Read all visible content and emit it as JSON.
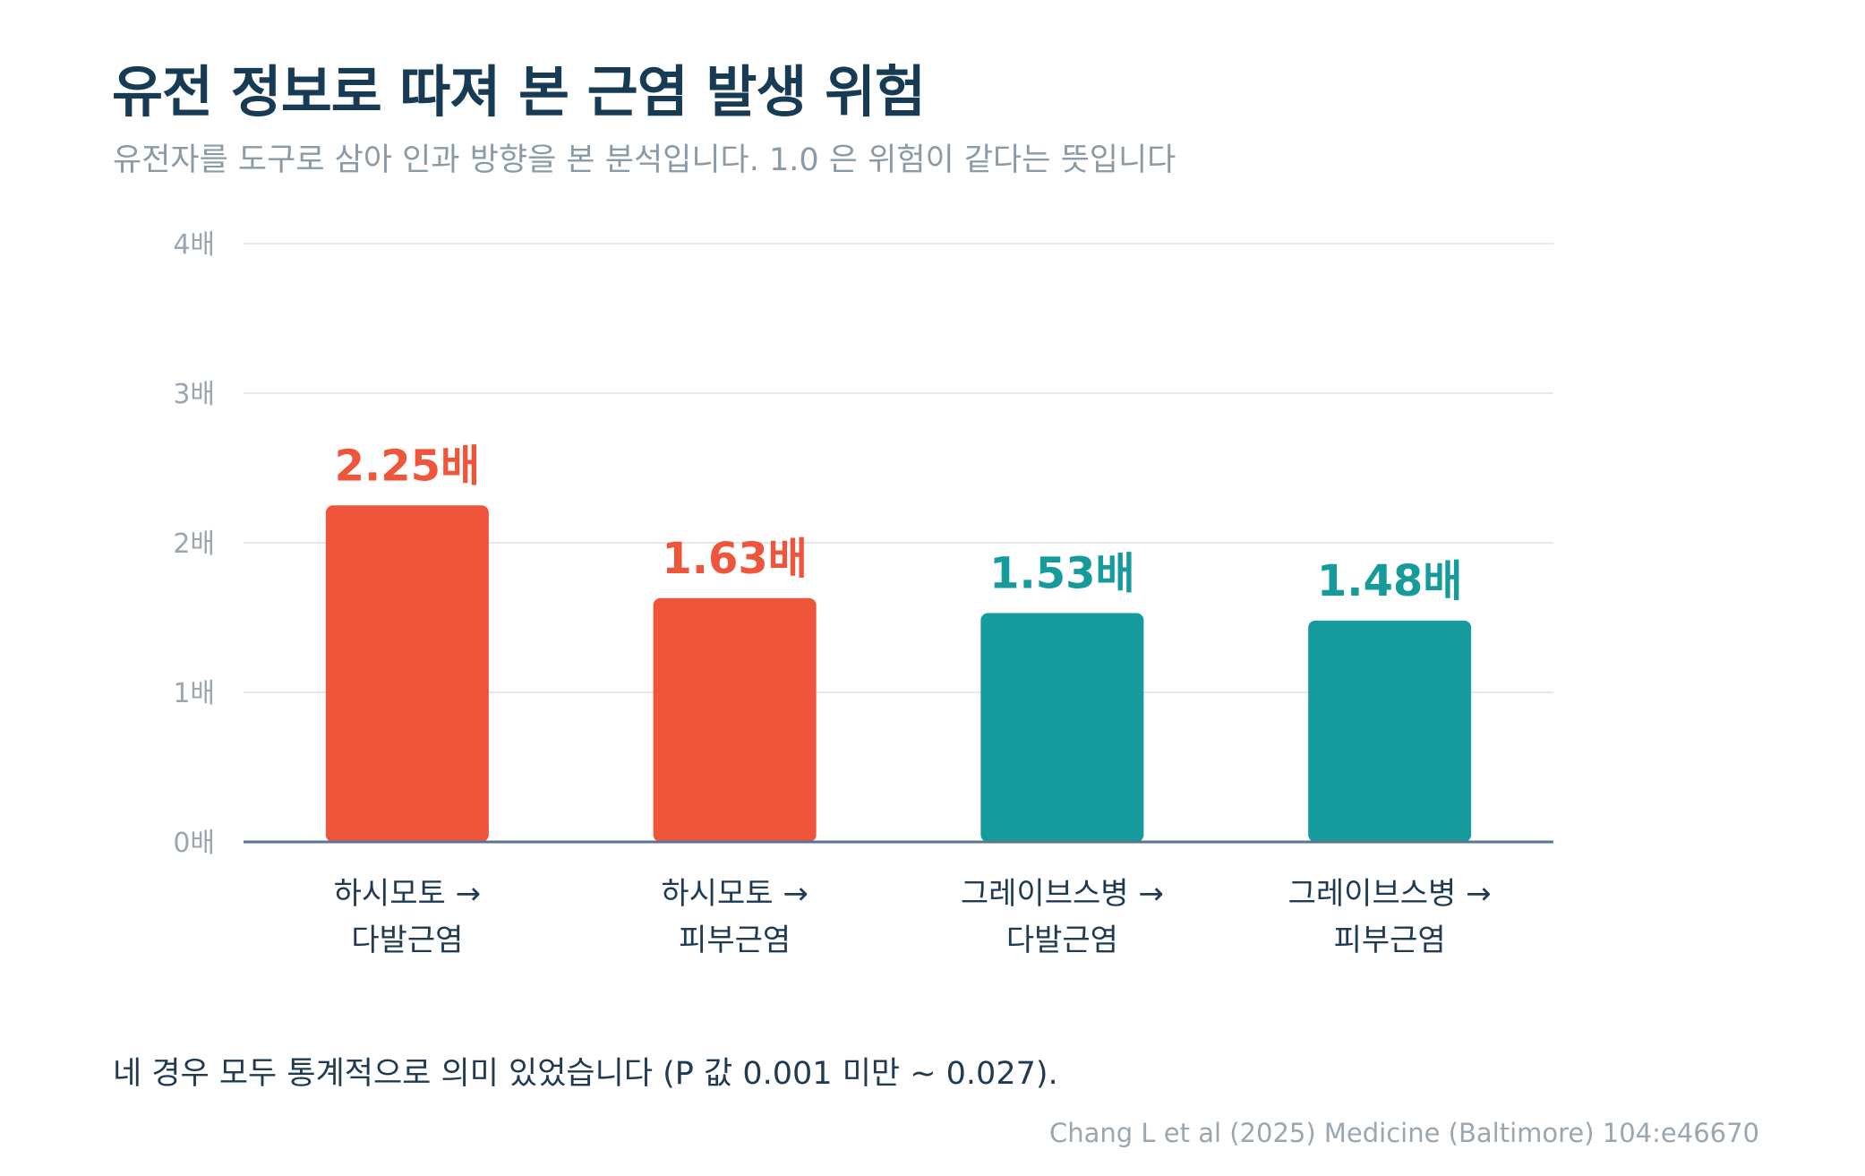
{
  "header": {
    "title": "유전 정보로 따져 본 근염 발생 위험",
    "subtitle": "유전자를 도구로 삼아 인과 방향을 본 분석입니다. 1.0 은 위험이 같다는 뜻입니다"
  },
  "chart_data": {
    "type": "bar",
    "categories": [
      [
        "하시모토 →",
        "다발근염"
      ],
      [
        "하시모토 →",
        "피부근염"
      ],
      [
        "그레이브스병 →",
        "다발근염"
      ],
      [
        "그레이브스병 →",
        "피부근염"
      ]
    ],
    "values": [
      2.25,
      1.63,
      1.53,
      1.48
    ],
    "value_labels": [
      "2.25배",
      "1.63배",
      "1.53배",
      "1.48배"
    ],
    "bar_colors": [
      "#ee553b",
      "#ee553b",
      "#159b9b",
      "#159b9b"
    ],
    "ylim": [
      0,
      4
    ],
    "yticks": [
      0,
      1,
      2,
      3,
      4
    ],
    "ytick_labels": [
      "0배",
      "1배",
      "2배",
      "3배",
      "4배"
    ],
    "grid": true,
    "legend": "none"
  },
  "footnote": "네 경우 모두 통계적으로 의미 있었습니다 (P 값 0.001 미만 ~ 0.027).",
  "source": "Chang L et al (2025) Medicine (Baltimore) 104:e46670",
  "colors": {
    "title": "#173a55",
    "subtitle": "#8a9aa6",
    "tick": "#9aa6b0",
    "grid": "#e4e8ec",
    "baseline": "#5a7590",
    "category": "#1f3a52"
  }
}
